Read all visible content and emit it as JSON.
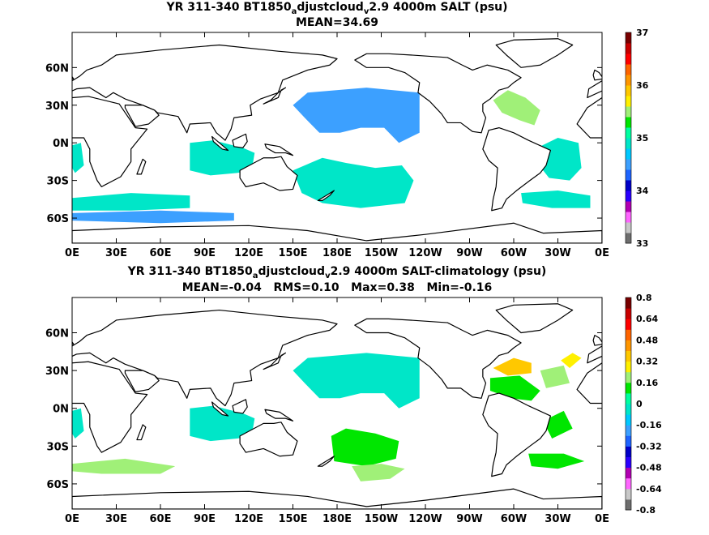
{
  "chart_data": [
    {
      "type": "heatmap",
      "title_prefix": "YR 311-340 BT1850",
      "title_sub1": "a",
      "title_mid": "djustcloud",
      "title_sub2": "v",
      "title_suffix": "2.9 4000m SALT (psu)",
      "stats": "MEAN=34.69",
      "units": "psu",
      "x_tick_labels": [
        "0E",
        "30E",
        "60E",
        "90E",
        "120E",
        "150E",
        "180E",
        "150W",
        "120W",
        "90W",
        "60W",
        "30W",
        "0E"
      ],
      "y_tick_labels": [
        "60N",
        "30N",
        "0N",
        "30S",
        "60S"
      ],
      "y_tick_values": [
        60,
        30,
        0,
        -30,
        -60
      ],
      "xlim": [
        0,
        360
      ],
      "ylim": [
        -80,
        88
      ],
      "colorbar_labels": [
        "37",
        "36",
        "35",
        "34",
        "33"
      ],
      "colorbar_min": 33,
      "colorbar_max": 37,
      "colorbar_colors": [
        "#6e6e6e",
        "#c8c8c8",
        "#ff66ff",
        "#b200b2",
        "#2a00ff",
        "#0000c8",
        "#1e64ff",
        "#3ca0ff",
        "#00c8ff",
        "#00e6c8",
        "#00ffa0",
        "#00e600",
        "#a0f078",
        "#fff000",
        "#ffc800",
        "#ff9600",
        "#ff6400",
        "#ff0000",
        "#c80000",
        "#780000"
      ],
      "regions": [
        {
          "color": "#3ca0ff",
          "pts": [
            [
              160,
              40
            ],
            [
              200,
              44
            ],
            [
              236,
              40
            ],
            [
              236,
              8
            ],
            [
              222,
              0
            ],
            [
              212,
              12
            ],
            [
              196,
              12
            ],
            [
              182,
              8
            ],
            [
              168,
              8
            ],
            [
              158,
              20
            ],
            [
              150,
              30
            ]
          ]
        },
        {
          "color": "#00e6c8",
          "pts": [
            [
              80,
              0
            ],
            [
              96,
              2
            ],
            [
              116,
              -4
            ],
            [
              124,
              -8
            ],
            [
              122,
              -22
            ],
            [
              112,
              -24
            ],
            [
              94,
              -26
            ],
            [
              80,
              -22
            ]
          ]
        },
        {
          "color": "#00e6c8",
          "pts": [
            [
              150,
              -22
            ],
            [
              170,
              -12
            ],
            [
              186,
              -16
            ],
            [
              206,
              -20
            ],
            [
              224,
              -18
            ],
            [
              232,
              -30
            ],
            [
              226,
              -48
            ],
            [
              196,
              -52
            ],
            [
              170,
              -48
            ],
            [
              156,
              -40
            ]
          ]
        },
        {
          "color": "#00e6c8",
          "pts": [
            [
              0,
              -44
            ],
            [
              40,
              -40
            ],
            [
              80,
              -42
            ],
            [
              80,
              -52
            ],
            [
              40,
              -54
            ],
            [
              0,
              -54
            ]
          ]
        },
        {
          "color": "#3ca0ff",
          "pts": [
            [
              0,
              -56
            ],
            [
              60,
              -54
            ],
            [
              110,
              -56
            ],
            [
              110,
              -62
            ],
            [
              60,
              -64
            ],
            [
              0,
              -62
            ]
          ]
        },
        {
          "color": "#a0f078",
          "pts": [
            [
              286,
              34
            ],
            [
              296,
              42
            ],
            [
              308,
              36
            ],
            [
              318,
              26
            ],
            [
              314,
              14
            ],
            [
              304,
              18
            ],
            [
              292,
              24
            ]
          ]
        },
        {
          "color": "#00e6c8",
          "pts": [
            [
              316,
              -4
            ],
            [
              330,
              4
            ],
            [
              344,
              0
            ],
            [
              346,
              -20
            ],
            [
              338,
              -30
            ],
            [
              324,
              -28
            ],
            [
              316,
              -16
            ]
          ]
        },
        {
          "color": "#00e6c8",
          "pts": [
            [
              0,
              -2
            ],
            [
              6,
              0
            ],
            [
              8,
              -18
            ],
            [
              2,
              -24
            ],
            [
              0,
              -20
            ]
          ]
        },
        {
          "color": "#00e6c8",
          "pts": [
            [
              305,
              -40
            ],
            [
              330,
              -38
            ],
            [
              352,
              -42
            ],
            [
              352,
              -52
            ],
            [
              326,
              -52
            ],
            [
              306,
              -48
            ]
          ]
        }
      ]
    },
    {
      "type": "heatmap",
      "title_prefix": "YR 311-340 BT1850",
      "title_sub1": "a",
      "title_mid": "djustcloud",
      "title_sub2": "v",
      "title_suffix": "2.9 4000m SALT-climatology (psu)",
      "stats": "MEAN=-0.04   RMS=0.10   Max=0.38   Min=-0.16",
      "units": "psu",
      "x_tick_labels": [
        "0E",
        "30E",
        "60E",
        "90E",
        "120E",
        "150E",
        "180E",
        "150W",
        "120W",
        "90W",
        "60W",
        "30W",
        "0E"
      ],
      "y_tick_labels": [
        "60N",
        "30N",
        "0N",
        "30S",
        "60S"
      ],
      "y_tick_values": [
        60,
        30,
        0,
        -30,
        -60
      ],
      "xlim": [
        0,
        360
      ],
      "ylim": [
        -80,
        88
      ],
      "colorbar_labels": [
        "0.8",
        "0.64",
        "0.48",
        "0.32",
        "0.16",
        "0",
        "-0.16",
        "-0.32",
        "-0.48",
        "-0.64",
        "-0.8"
      ],
      "colorbar_min": -0.8,
      "colorbar_max": 0.8,
      "colorbar_colors": [
        "#6e6e6e",
        "#c8c8c8",
        "#ff66ff",
        "#b200b2",
        "#2a00ff",
        "#0000c8",
        "#1e64ff",
        "#3ca0ff",
        "#00c8ff",
        "#00e6c8",
        "#00ffa0",
        "#00e600",
        "#a0f078",
        "#fff000",
        "#ffc800",
        "#ff9600",
        "#ff6400",
        "#ff0000",
        "#c80000",
        "#780000"
      ],
      "regions": [
        {
          "color": "#00e6c8",
          "pts": [
            [
              160,
              40
            ],
            [
              200,
              44
            ],
            [
              236,
              40
            ],
            [
              236,
              8
            ],
            [
              222,
              0
            ],
            [
              212,
              12
            ],
            [
              196,
              12
            ],
            [
              182,
              8
            ],
            [
              168,
              8
            ],
            [
              158,
              20
            ],
            [
              150,
              30
            ]
          ]
        },
        {
          "color": "#00e6c8",
          "pts": [
            [
              80,
              0
            ],
            [
              96,
              2
            ],
            [
              116,
              -4
            ],
            [
              124,
              -8
            ],
            [
              122,
              -22
            ],
            [
              112,
              -24
            ],
            [
              94,
              -26
            ],
            [
              80,
              -22
            ]
          ]
        },
        {
          "color": "#00e600",
          "pts": [
            [
              176,
              -22
            ],
            [
              186,
              -16
            ],
            [
              206,
              -20
            ],
            [
              222,
              -26
            ],
            [
              220,
              -40
            ],
            [
              200,
              -46
            ],
            [
              178,
              -42
            ]
          ]
        },
        {
          "color": "#a0f078",
          "pts": [
            [
              0,
              -44
            ],
            [
              36,
              -40
            ],
            [
              70,
              -46
            ],
            [
              60,
              -52
            ],
            [
              20,
              -52
            ],
            [
              0,
              -50
            ]
          ]
        },
        {
          "color": "#a0f078",
          "pts": [
            [
              190,
              -46
            ],
            [
              210,
              -44
            ],
            [
              226,
              -48
            ],
            [
              216,
              -56
            ],
            [
              196,
              -58
            ]
          ]
        },
        {
          "color": "#00e600",
          "pts": [
            [
              284,
              24
            ],
            [
              304,
              26
            ],
            [
              318,
              14
            ],
            [
              312,
              6
            ],
            [
              298,
              8
            ],
            [
              284,
              14
            ]
          ]
        },
        {
          "color": "#ffc800",
          "pts": [
            [
              286,
              32
            ],
            [
              300,
              40
            ],
            [
              312,
              36
            ],
            [
              312,
              28
            ],
            [
              296,
              26
            ]
          ]
        },
        {
          "color": "#fff000",
          "pts": [
            [
              332,
              38
            ],
            [
              340,
              44
            ],
            [
              346,
              40
            ],
            [
              338,
              32
            ]
          ]
        },
        {
          "color": "#a0f078",
          "pts": [
            [
              318,
              30
            ],
            [
              334,
              34
            ],
            [
              338,
              20
            ],
            [
              322,
              16
            ]
          ]
        },
        {
          "color": "#00e600",
          "pts": [
            [
              320,
              -10
            ],
            [
              334,
              -2
            ],
            [
              340,
              -16
            ],
            [
              326,
              -24
            ]
          ]
        },
        {
          "color": "#00e600",
          "pts": [
            [
              310,
              -36
            ],
            [
              334,
              -36
            ],
            [
              348,
              -42
            ],
            [
              330,
              -48
            ],
            [
              312,
              -46
            ]
          ]
        },
        {
          "color": "#00e6c8",
          "pts": [
            [
              0,
              -2
            ],
            [
              6,
              0
            ],
            [
              8,
              -18
            ],
            [
              2,
              -24
            ],
            [
              0,
              -20
            ]
          ]
        }
      ]
    }
  ]
}
